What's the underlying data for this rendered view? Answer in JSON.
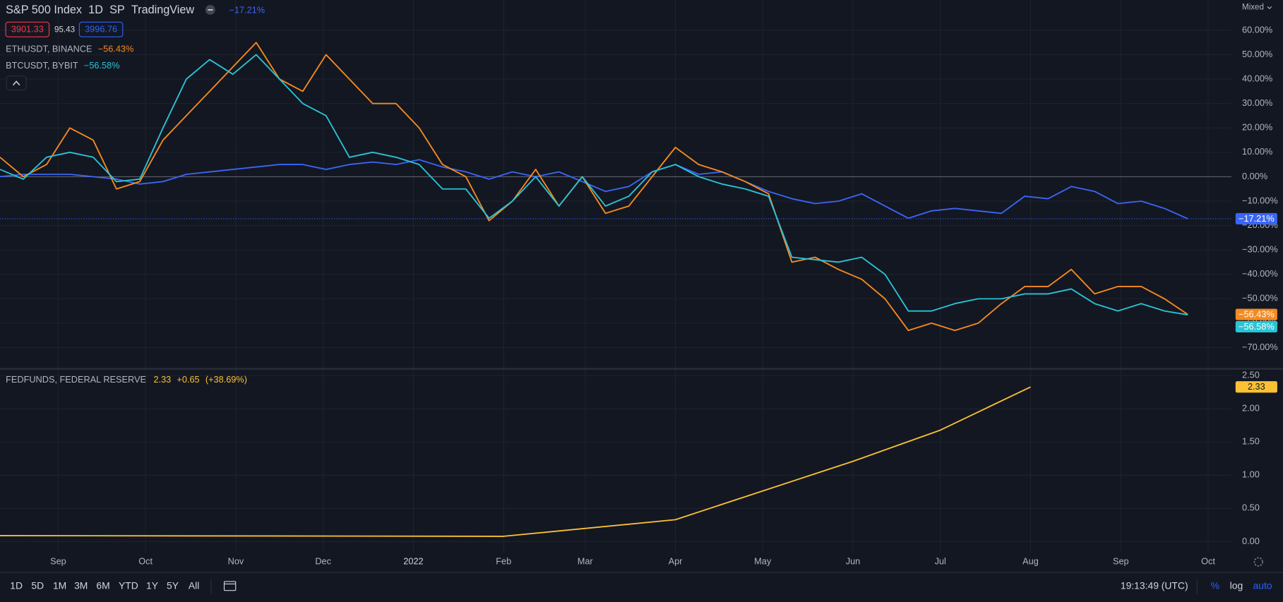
{
  "chart_data": [
    {
      "type": "line",
      "scale_label": "Mixed",
      "interval": "1D",
      "exchange": "SP",
      "source": "TradingView",
      "quote": {
        "sell": 3901.33,
        "spread": 95.43,
        "buy": 3996.76
      },
      "x": [
        0,
        8,
        16,
        24,
        32,
        40,
        48,
        56,
        64,
        72,
        80,
        88,
        96,
        104,
        112,
        120,
        128,
        136,
        144,
        152,
        160,
        168,
        176,
        184,
        192,
        200,
        208,
        216,
        224,
        232,
        240,
        248,
        256,
        264,
        272,
        280,
        288,
        296,
        304,
        312,
        320,
        328,
        336,
        344,
        352,
        360,
        368,
        376,
        384,
        392,
        400,
        408
      ],
      "xlim": [
        0,
        423
      ],
      "ylim": [
        -78.4,
        72.4
      ],
      "yticks": [
        {
          "value": 60,
          "label": "60.00%"
        },
        {
          "value": 50,
          "label": "50.00%"
        },
        {
          "value": 40,
          "label": "40.00%"
        },
        {
          "value": 30,
          "label": "30.00%"
        },
        {
          "value": 20,
          "label": "20.00%"
        },
        {
          "value": 10,
          "label": "10.00%"
        },
        {
          "value": 0,
          "label": "0.00%"
        },
        {
          "value": -10,
          "label": "−10.00%"
        },
        {
          "value": -20,
          "label": "−20.00%"
        },
        {
          "value": -30,
          "label": "−30.00%"
        },
        {
          "value": -40,
          "label": "−40.00%"
        },
        {
          "value": -50,
          "label": "−50.00%"
        },
        {
          "value": -60,
          "label": "−60.00%"
        },
        {
          "value": -70,
          "label": "−70.00%"
        }
      ],
      "grid": true,
      "series": [
        {
          "name": "S&P 500 Index",
          "color": "#3a66f5",
          "change_label": "−17.21%",
          "values": [
            0,
            1,
            1,
            1,
            0,
            -1,
            -3,
            -2,
            1,
            2,
            3,
            4,
            5,
            5,
            3,
            5,
            6,
            5,
            7,
            4,
            2,
            -1,
            2,
            0,
            2,
            -2,
            -6,
            -4,
            2,
            5,
            1,
            2,
            -2,
            -6,
            -9,
            -11,
            -10,
            -7,
            -12,
            -17,
            -14,
            -13,
            -14,
            -15,
            -8,
            -9,
            -4,
            -6,
            -11,
            -10,
            -13,
            -17.21
          ]
        },
        {
          "name": "ETHUSDT, BINANCE",
          "color": "#f68a1e",
          "change_label": "−56.43%",
          "values": [
            8,
            0,
            5,
            20,
            15,
            -5,
            -2,
            15,
            25,
            35,
            45,
            55,
            40,
            35,
            50,
            40,
            30,
            30,
            20,
            5,
            0,
            -18,
            -10,
            3,
            -12,
            0,
            -15,
            -12,
            0,
            12,
            5,
            2,
            -2,
            -7,
            -35,
            -33,
            -38,
            -42,
            -50,
            -63,
            -60,
            -63,
            -60,
            -52,
            -45,
            -45,
            -38,
            -48,
            -45,
            -45,
            -50,
            -56.43
          ]
        },
        {
          "name": "BTCUSDT, BYBIT",
          "color": "#29c4d6",
          "change_label": "−56.58%",
          "values": [
            3,
            -1,
            8,
            10,
            8,
            -2,
            -1,
            20,
            40,
            48,
            42,
            50,
            40,
            30,
            25,
            8,
            10,
            8,
            5,
            -5,
            -5,
            -17,
            -10,
            0,
            -12,
            0,
            -12,
            -8,
            2,
            5,
            0,
            -3,
            -5,
            -8,
            -33,
            -34,
            -35,
            -33,
            -40,
            -55,
            -55,
            -52,
            -50,
            -50,
            -48,
            -48,
            -46,
            -52,
            -55,
            -52,
            -55,
            -56.58
          ]
        }
      ]
    },
    {
      "type": "line",
      "x": [
        0,
        173,
        232,
        293,
        323,
        354
      ],
      "xlim": [
        0,
        423
      ],
      "ylim": [
        -0.17,
        2.59
      ],
      "yticks": [
        {
          "value": 2.5,
          "label": "2.50"
        },
        {
          "value": 2,
          "label": "2.00"
        },
        {
          "value": 1.5,
          "label": "1.50"
        },
        {
          "value": 1,
          "label": "1.00"
        },
        {
          "value": 0.5,
          "label": "0.50"
        },
        {
          "value": 0,
          "label": "0.00"
        }
      ],
      "xticks": [
        {
          "value": 20,
          "label": "Sep"
        },
        {
          "value": 50,
          "label": "Oct"
        },
        {
          "value": 81,
          "label": "Nov"
        },
        {
          "value": 111,
          "label": "Dec"
        },
        {
          "value": 142,
          "label": "2022"
        },
        {
          "value": 173,
          "label": "Feb"
        },
        {
          "value": 201,
          "label": "Mar"
        },
        {
          "value": 232,
          "label": "Apr"
        },
        {
          "value": 262,
          "label": "May"
        },
        {
          "value": 293,
          "label": "Jun"
        },
        {
          "value": 323,
          "label": "Jul"
        },
        {
          "value": 354,
          "label": "Aug"
        },
        {
          "value": 385,
          "label": "Sep"
        },
        {
          "value": 415,
          "label": "Oct"
        }
      ],
      "grid": true,
      "series": [
        {
          "name": "FEDFUNDS, FEDERAL RESERVE",
          "color": "#f9c133",
          "change": "+0.65",
          "change_pct": "(+38.69%)",
          "values": [
            0.09,
            0.08,
            0.33,
            1.21,
            1.68,
            2.33
          ]
        }
      ]
    }
  ],
  "toolbar": {
    "ranges": [
      "1D",
      "5D",
      "1M",
      "3M",
      "6M",
      "YTD",
      "1Y",
      "5Y",
      "All"
    ],
    "time": "19:13:49 (UTC)",
    "scale_modes": [
      "%",
      "log",
      "auto"
    ]
  }
}
